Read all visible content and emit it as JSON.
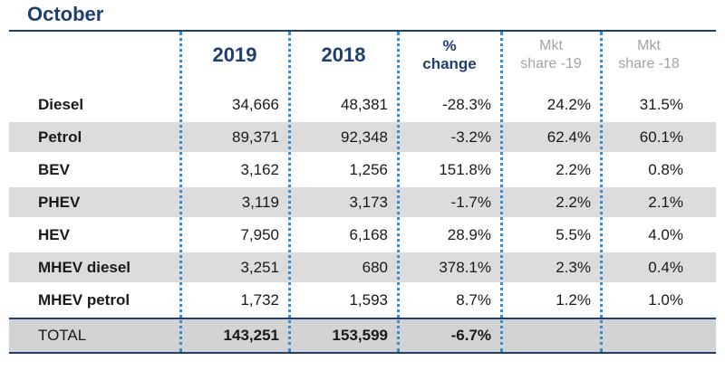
{
  "title": "October",
  "headers": {
    "y2019": "2019",
    "y2018": "2018",
    "pct_line1": "%",
    "pct_line2": "change",
    "mkt19_line1": "Mkt",
    "mkt19_line2": "share -19",
    "mkt18_line1": "Mkt",
    "mkt18_line2": "share -18"
  },
  "rows": [
    {
      "label": "Diesel",
      "y2019": "34,666",
      "y2018": "48,381",
      "change": "-28.3%",
      "share19": "24.2%",
      "share18": "31.5%"
    },
    {
      "label": "Petrol",
      "y2019": "89,371",
      "y2018": "92,348",
      "change": "-3.2%",
      "share19": "62.4%",
      "share18": "60.1%"
    },
    {
      "label": "BEV",
      "y2019": "3,162",
      "y2018": "1,256",
      "change": "151.8%",
      "share19": "2.2%",
      "share18": "0.8%"
    },
    {
      "label": "PHEV",
      "y2019": "3,119",
      "y2018": "3,173",
      "change": "-1.7%",
      "share19": "2.2%",
      "share18": "2.1%"
    },
    {
      "label": "HEV",
      "y2019": "7,950",
      "y2018": "6,168",
      "change": "28.9%",
      "share19": "5.5%",
      "share18": "4.0%"
    },
    {
      "label": "MHEV diesel",
      "y2019": "3,251",
      "y2018": "680",
      "change": "378.1%",
      "share19": "2.3%",
      "share18": "0.4%"
    },
    {
      "label": "MHEV petrol",
      "y2019": "1,732",
      "y2018": "1,593",
      "change": "8.7%",
      "share19": "1.2%",
      "share18": "1.0%"
    }
  ],
  "total": {
    "label": "TOTAL",
    "y2019": "143,251",
    "y2018": "153,599",
    "change": "-6.7%"
  },
  "colors": {
    "accent": "#1e3f73",
    "dots": "#2f8fd8",
    "shade": "#dcdcdc",
    "muted": "#a3a3a3"
  }
}
